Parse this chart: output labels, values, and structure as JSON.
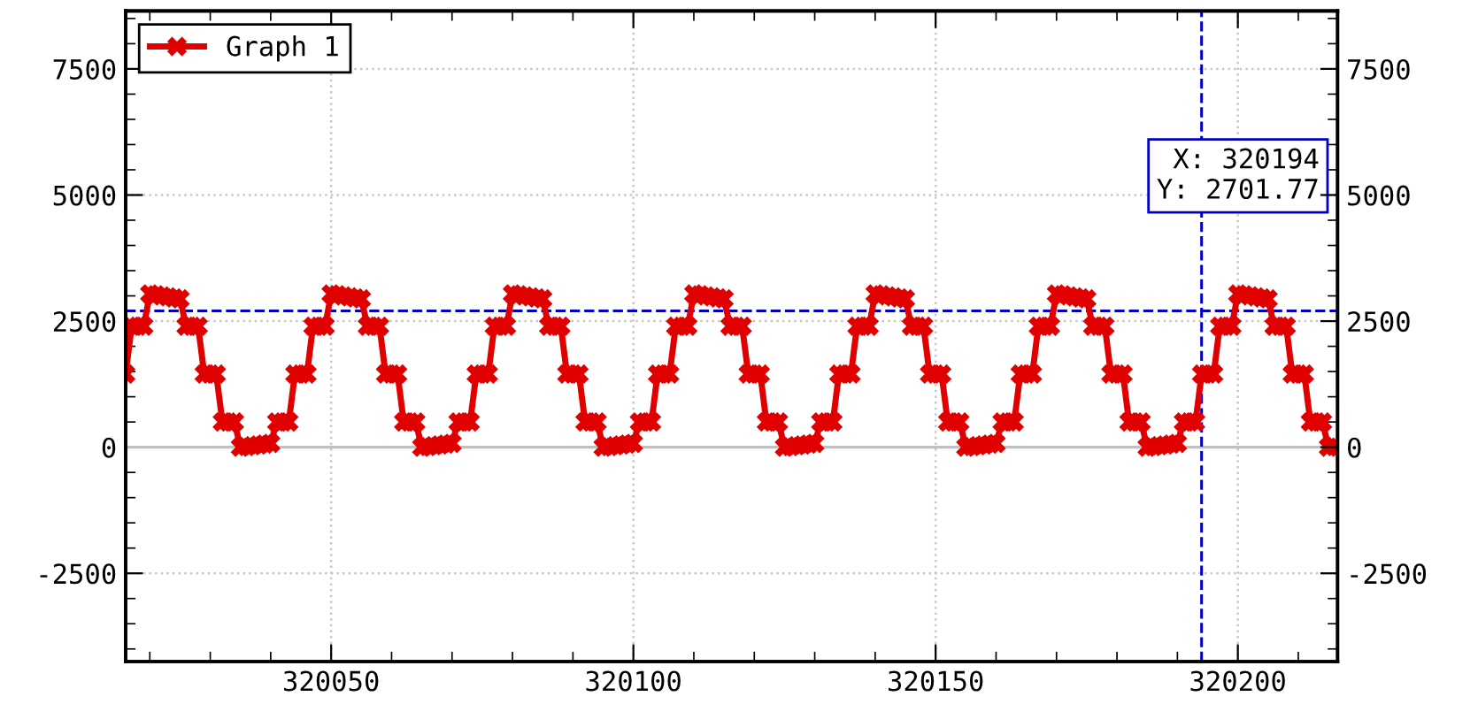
{
  "chart_data": {
    "type": "line",
    "x": [
      320016,
      320017,
      320018,
      320019,
      320020,
      320021,
      320022,
      320023,
      320024,
      320025,
      320026,
      320027,
      320028,
      320029,
      320030,
      320031,
      320032,
      320033,
      320034,
      320035,
      320036,
      320037,
      320038,
      320039,
      320040,
      320041,
      320042,
      320043,
      320044,
      320045,
      320046,
      320047,
      320048,
      320049,
      320050,
      320051,
      320052,
      320053,
      320054,
      320055,
      320056,
      320057,
      320058,
      320059,
      320060,
      320061,
      320062,
      320063,
      320064,
      320065,
      320066,
      320067,
      320068,
      320069,
      320070,
      320071,
      320072,
      320073,
      320074,
      320075,
      320076,
      320077,
      320078,
      320079,
      320080,
      320081,
      320082,
      320083,
      320084,
      320085,
      320086,
      320087,
      320088,
      320089,
      320090,
      320091,
      320092,
      320093,
      320094,
      320095,
      320096,
      320097,
      320098,
      320099,
      320100,
      320101,
      320102,
      320103,
      320104,
      320105,
      320106,
      320107,
      320108,
      320109,
      320110,
      320111,
      320112,
      320113,
      320114,
      320115,
      320116,
      320117,
      320118,
      320119,
      320120,
      320121,
      320122,
      320123,
      320124,
      320125,
      320126,
      320127,
      320128,
      320129,
      320130,
      320131,
      320132,
      320133,
      320134,
      320135,
      320136,
      320137,
      320138,
      320139,
      320140,
      320141,
      320142,
      320143,
      320144,
      320145,
      320146,
      320147,
      320148,
      320149,
      320150,
      320151,
      320152,
      320153,
      320154,
      320155,
      320156,
      320157,
      320158,
      320159,
      320160,
      320161,
      320162,
      320163,
      320164,
      320165,
      320166,
      320167,
      320168,
      320169,
      320170,
      320171,
      320172,
      320173,
      320174,
      320175,
      320176,
      320177,
      320178,
      320179,
      320180,
      320181,
      320182,
      320183,
      320184,
      320185,
      320186,
      320187,
      320188,
      320189,
      320190,
      320191,
      320192,
      320193,
      320194,
      320195,
      320196,
      320197,
      320198,
      320199,
      320200,
      320201,
      320202,
      320203,
      320204,
      320205,
      320206,
      320207,
      320208,
      320209,
      320210,
      320211,
      320212,
      320213,
      320214,
      320215,
      320216
    ],
    "series": [
      {
        "name": "Graph 1",
        "color": "#e00000",
        "axis": "y",
        "values": [
          1450,
          2400,
          2400,
          2400,
          3040,
          3020,
          3000,
          2980,
          2960,
          2940,
          2400,
          2400,
          2400,
          1450,
          1450,
          1450,
          500,
          500,
          500,
          0,
          15,
          30,
          45,
          60,
          75,
          500,
          500,
          500,
          1450,
          1450,
          1450,
          2400,
          2400,
          2400,
          3040,
          3020,
          3000,
          2980,
          2960,
          2940,
          2400,
          2400,
          2400,
          1450,
          1450,
          1450,
          500,
          500,
          500,
          0,
          15,
          30,
          45,
          60,
          75,
          500,
          500,
          500,
          1450,
          1450,
          1450,
          2400,
          2400,
          2400,
          3040,
          3020,
          3000,
          2980,
          2960,
          2940,
          2400,
          2400,
          2400,
          1450,
          1450,
          1450,
          500,
          500,
          500,
          0,
          15,
          30,
          45,
          60,
          75,
          500,
          500,
          500,
          1450,
          1450,
          1450,
          2400,
          2400,
          2400,
          3040,
          3020,
          3000,
          2980,
          2960,
          2940,
          2400,
          2400,
          2400,
          1450,
          1450,
          1450,
          500,
          500,
          500,
          0,
          15,
          30,
          45,
          60,
          75,
          500,
          500,
          500,
          1450,
          1450,
          1450,
          2400,
          2400,
          2400,
          3040,
          3020,
          3000,
          2980,
          2960,
          2940,
          2400,
          2400,
          2400,
          1450,
          1450,
          1450,
          500,
          500,
          500,
          0,
          15,
          30,
          45,
          60,
          75,
          500,
          500,
          500,
          1450,
          1450,
          1450,
          2400,
          2400,
          2400,
          3040,
          3020,
          3000,
          2980,
          2960,
          2940,
          2400,
          2400,
          2400,
          1450,
          1450,
          1450,
          500,
          500,
          500,
          0,
          15,
          30,
          45,
          60,
          75,
          500,
          500,
          500,
          1450,
          1450,
          1450,
          2400,
          2400,
          2400,
          3040,
          3020,
          3000,
          2980,
          2960,
          2940,
          2400,
          2400,
          2400,
          1450,
          1450,
          1450,
          500,
          500,
          500,
          0,
          15
        ]
      }
    ],
    "xlim": [
      320016,
      320216.5
    ],
    "xticks": [
      320050,
      320100,
      320150,
      320200
    ],
    "ylim": [
      -4250,
      8650
    ],
    "yticks": [
      -2500,
      0,
      2500,
      5000,
      7500
    ],
    "y2lim": [
      -4250,
      8650
    ],
    "y2ticks": [
      -2500,
      0,
      2500,
      5000,
      7500
    ],
    "ref_lines": [
      {
        "axis": "y",
        "value": 0,
        "color": "#c0c0c0",
        "line_style": "solid"
      },
      {
        "axis": "x",
        "value": 320194,
        "color": "#0000c8",
        "line_style": "dashed"
      },
      {
        "axis": "y",
        "value": 2701.77,
        "color": "#0000c8",
        "line_style": "dashed"
      }
    ],
    "annotations": [
      "X: 320194\nY: 2701.77"
    ],
    "grid": true,
    "legend": "top left",
    "marker": "cross",
    "line_style": "solid"
  }
}
